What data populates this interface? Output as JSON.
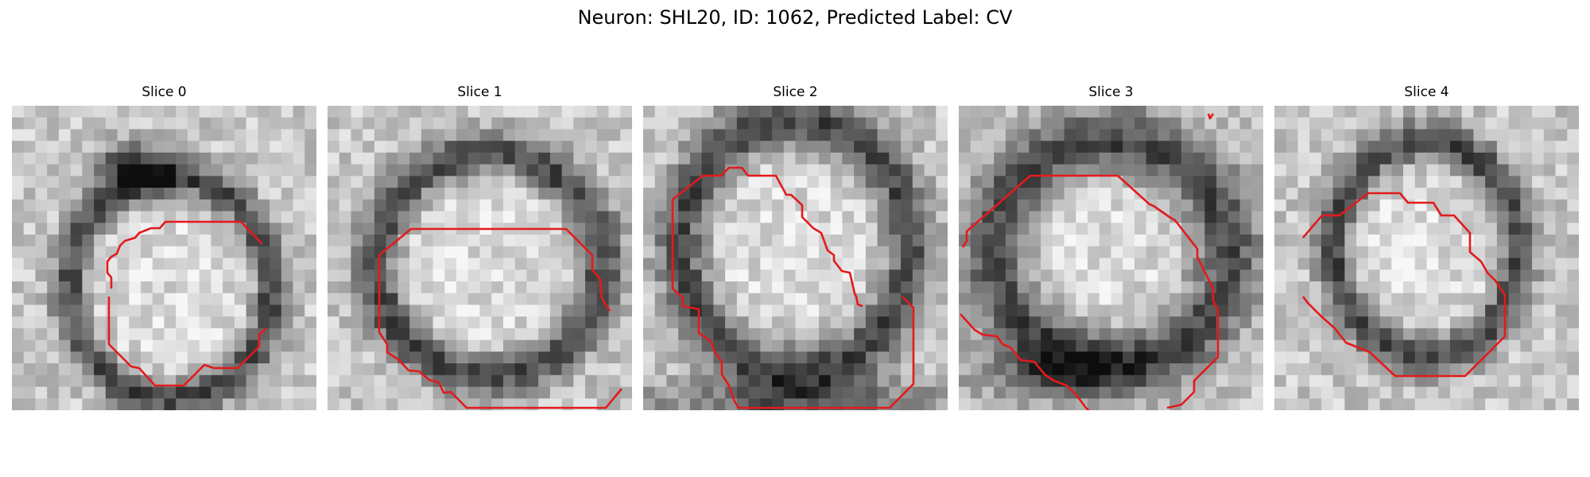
{
  "title": "Neuron: SHL20, ID: 1062, Predicted Label: CV",
  "panels": [
    {
      "label": "Slice 0"
    },
    {
      "label": "Slice 1"
    },
    {
      "label": "Slice 2"
    },
    {
      "label": "Slice 3"
    },
    {
      "label": "Slice 4"
    }
  ],
  "colors": {
    "contour": "#e31a1c",
    "background": "#ffffff"
  },
  "image": {
    "colormap": "grayscale",
    "grid_cells": 26
  }
}
